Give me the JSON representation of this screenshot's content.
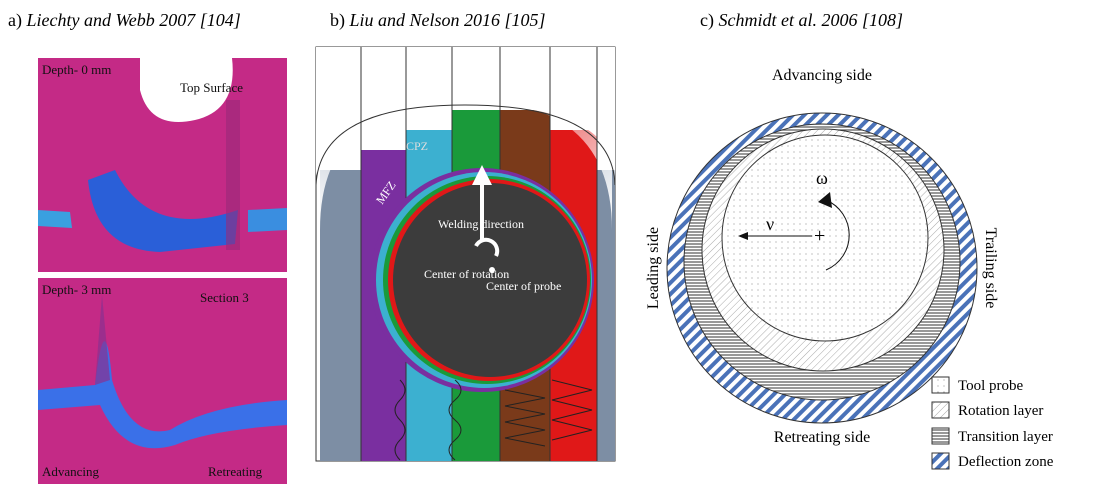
{
  "panel_a": {
    "label": "a)",
    "citation": "Liechty and Webb 2007 [104]",
    "top_image": {
      "depth": "Depth- 0 mm",
      "note": "Top Surface"
    },
    "bottom_image": {
      "depth": "Depth- 3 mm",
      "note": "Section 3",
      "left": "Advancing",
      "right": "Retreating"
    }
  },
  "panel_b": {
    "label": "b)",
    "citation": "Liu and Nelson 2016 [105]",
    "zones": [
      "CPZ",
      "MFZ"
    ],
    "arrow": "Welding direction",
    "rotation": "Center of rotation",
    "probe": "Center of probe"
  },
  "panel_c": {
    "label": "c)",
    "citation": "Schmidt et al. 2006 [108]",
    "sides": {
      "top": "Advancing side",
      "bottom": "Retreating side",
      "left": "Leading side",
      "right": "Trailing side"
    },
    "omega": "ω",
    "nu": "ν",
    "center": "+",
    "legend": [
      "Tool probe",
      "Rotation layer",
      "Transition layer",
      "Deflection zone"
    ]
  }
}
